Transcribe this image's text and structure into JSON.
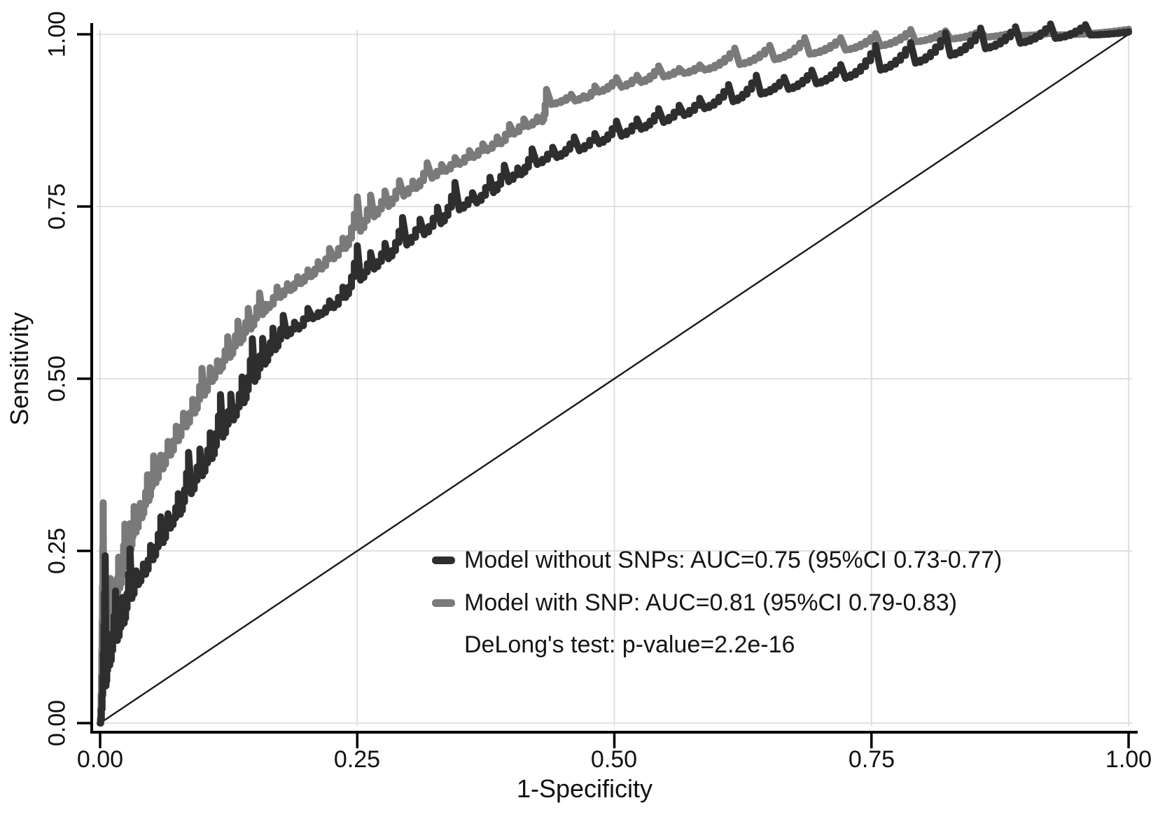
{
  "figure": {
    "background": "#ffffff",
    "axes": {
      "x": {
        "title": "1-Specificity",
        "ticks": [
          "0.00",
          "0.25",
          "0.50",
          "0.75",
          "1.00"
        ]
      },
      "y": {
        "title": "Sensitivity",
        "ticks": [
          "0.00",
          "0.25",
          "0.50",
          "0.75",
          "1.00"
        ]
      }
    },
    "colors": {
      "axis": "#000000",
      "grid": "#dcdcdc",
      "reference_line": "#1a1a1a",
      "curve_without_snps": "#2e2e2e",
      "curve_with_snp": "#7a7a7a"
    }
  },
  "chart_data": {
    "type": "line",
    "subtype": "roc-curves",
    "title": "",
    "xlabel": "1-Specificity",
    "ylabel": "Sensitivity",
    "xlim": [
      0,
      1
    ],
    "ylim": [
      0,
      1
    ],
    "x_ticks": [
      0,
      0.25,
      0.5,
      0.75,
      1
    ],
    "y_ticks": [
      0,
      0.25,
      0.5,
      0.75,
      1
    ],
    "grid": true,
    "legend_position": "inside lower-right",
    "reference_line": {
      "from": [
        0,
        0
      ],
      "to": [
        1,
        1
      ],
      "style": "thin solid black diagonal"
    },
    "annotation": "DeLong's test: p-value=2.2e-16",
    "series": [
      {
        "name": "Model without SNPs: AUC=0.75 (95%CI 0.73-0.77)",
        "auc": 0.75,
        "ci_95": "0.73-0.77",
        "color": "#2e2e2e",
        "points": [
          [
            0,
            0
          ],
          [
            0.005,
            0.054
          ],
          [
            0.008,
            0.084
          ],
          [
            0.015,
            0.12
          ],
          [
            0.022,
            0.145
          ],
          [
            0.029,
            0.181
          ],
          [
            0.035,
            0.201
          ],
          [
            0.042,
            0.216
          ],
          [
            0.049,
            0.237
          ],
          [
            0.059,
            0.262
          ],
          [
            0.066,
            0.283
          ],
          [
            0.076,
            0.303
          ],
          [
            0.086,
            0.333
          ],
          [
            0.097,
            0.359
          ],
          [
            0.107,
            0.384
          ],
          [
            0.117,
            0.415
          ],
          [
            0.127,
            0.44
          ],
          [
            0.138,
            0.465
          ],
          [
            0.148,
            0.496
          ],
          [
            0.158,
            0.521
          ],
          [
            0.168,
            0.542
          ],
          [
            0.178,
            0.562
          ],
          [
            0.189,
            0.572
          ],
          [
            0.202,
            0.587
          ],
          [
            0.212,
            0.593
          ],
          [
            0.223,
            0.603
          ],
          [
            0.236,
            0.618
          ],
          [
            0.25,
            0.643
          ],
          [
            0.263,
            0.659
          ],
          [
            0.277,
            0.674
          ],
          [
            0.294,
            0.694
          ],
          [
            0.311,
            0.709
          ],
          [
            0.328,
            0.725
          ],
          [
            0.345,
            0.745
          ],
          [
            0.362,
            0.755
          ],
          [
            0.379,
            0.77
          ],
          [
            0.393,
            0.786
          ],
          [
            0.406,
            0.796
          ],
          [
            0.42,
            0.811
          ],
          [
            0.44,
            0.821
          ],
          [
            0.461,
            0.831
          ],
          [
            0.481,
            0.841
          ],
          [
            0.502,
            0.852
          ],
          [
            0.522,
            0.862
          ],
          [
            0.543,
            0.872
          ],
          [
            0.563,
            0.882
          ],
          [
            0.583,
            0.892
          ],
          [
            0.611,
            0.902
          ],
          [
            0.638,
            0.913
          ],
          [
            0.665,
            0.92
          ],
          [
            0.692,
            0.928
          ],
          [
            0.72,
            0.936
          ],
          [
            0.754,
            0.948
          ],
          [
            0.788,
            0.958
          ],
          [
            0.822,
            0.969
          ],
          [
            0.856,
            0.979
          ],
          [
            0.89,
            0.987
          ],
          [
            0.924,
            0.994
          ],
          [
            0.958,
            0.999
          ],
          [
            1,
            1
          ]
        ]
      },
      {
        "name": "Model with SNP: AUC=0.81 (95%CI 0.79-0.83)",
        "auc": 0.81,
        "ci_95": "0.79-0.83",
        "color": "#7a7a7a",
        "points": [
          [
            0,
            0
          ],
          [
            0.003,
            0.064
          ],
          [
            0.006,
            0.105
          ],
          [
            0.01,
            0.14
          ],
          [
            0.014,
            0.166
          ],
          [
            0.018,
            0.196
          ],
          [
            0.024,
            0.227
          ],
          [
            0.029,
            0.252
          ],
          [
            0.033,
            0.277
          ],
          [
            0.039,
            0.298
          ],
          [
            0.046,
            0.323
          ],
          [
            0.052,
            0.349
          ],
          [
            0.059,
            0.369
          ],
          [
            0.066,
            0.389
          ],
          [
            0.074,
            0.41
          ],
          [
            0.081,
            0.43
          ],
          [
            0.09,
            0.45
          ],
          [
            0.099,
            0.476
          ],
          [
            0.107,
            0.496
          ],
          [
            0.114,
            0.511
          ],
          [
            0.124,
            0.531
          ],
          [
            0.134,
            0.552
          ],
          [
            0.144,
            0.572
          ],
          [
            0.155,
            0.593
          ],
          [
            0.161,
            0.603
          ],
          [
            0.172,
            0.618
          ],
          [
            0.182,
            0.628
          ],
          [
            0.192,
            0.638
          ],
          [
            0.202,
            0.648
          ],
          [
            0.212,
            0.659
          ],
          [
            0.223,
            0.674
          ],
          [
            0.236,
            0.689
          ],
          [
            0.25,
            0.714
          ],
          [
            0.263,
            0.735
          ],
          [
            0.277,
            0.75
          ],
          [
            0.291,
            0.765
          ],
          [
            0.304,
            0.776
          ],
          [
            0.318,
            0.791
          ],
          [
            0.332,
            0.801
          ],
          [
            0.345,
            0.811
          ],
          [
            0.359,
            0.821
          ],
          [
            0.372,
            0.831
          ],
          [
            0.386,
            0.841
          ],
          [
            0.398,
            0.855
          ],
          [
            0.412,
            0.866
          ],
          [
            0.425,
            0.873
          ],
          [
            0.43,
            0.876
          ],
          [
            0.434,
            0.898
          ],
          [
            0.458,
            0.903
          ],
          [
            0.47,
            0.907
          ],
          [
            0.481,
            0.916
          ],
          [
            0.502,
            0.923
          ],
          [
            0.522,
            0.93
          ],
          [
            0.543,
            0.938
          ],
          [
            0.563,
            0.943
          ],
          [
            0.583,
            0.948
          ],
          [
            0.617,
            0.956
          ],
          [
            0.651,
            0.963
          ],
          [
            0.685,
            0.971
          ],
          [
            0.72,
            0.977
          ],
          [
            0.754,
            0.983
          ],
          [
            0.788,
            0.989
          ],
          [
            0.822,
            0.993
          ],
          [
            0.856,
            0.996
          ],
          [
            0.89,
            0.998
          ],
          [
            0.924,
            0.999
          ],
          [
            1,
            1
          ]
        ]
      }
    ]
  }
}
